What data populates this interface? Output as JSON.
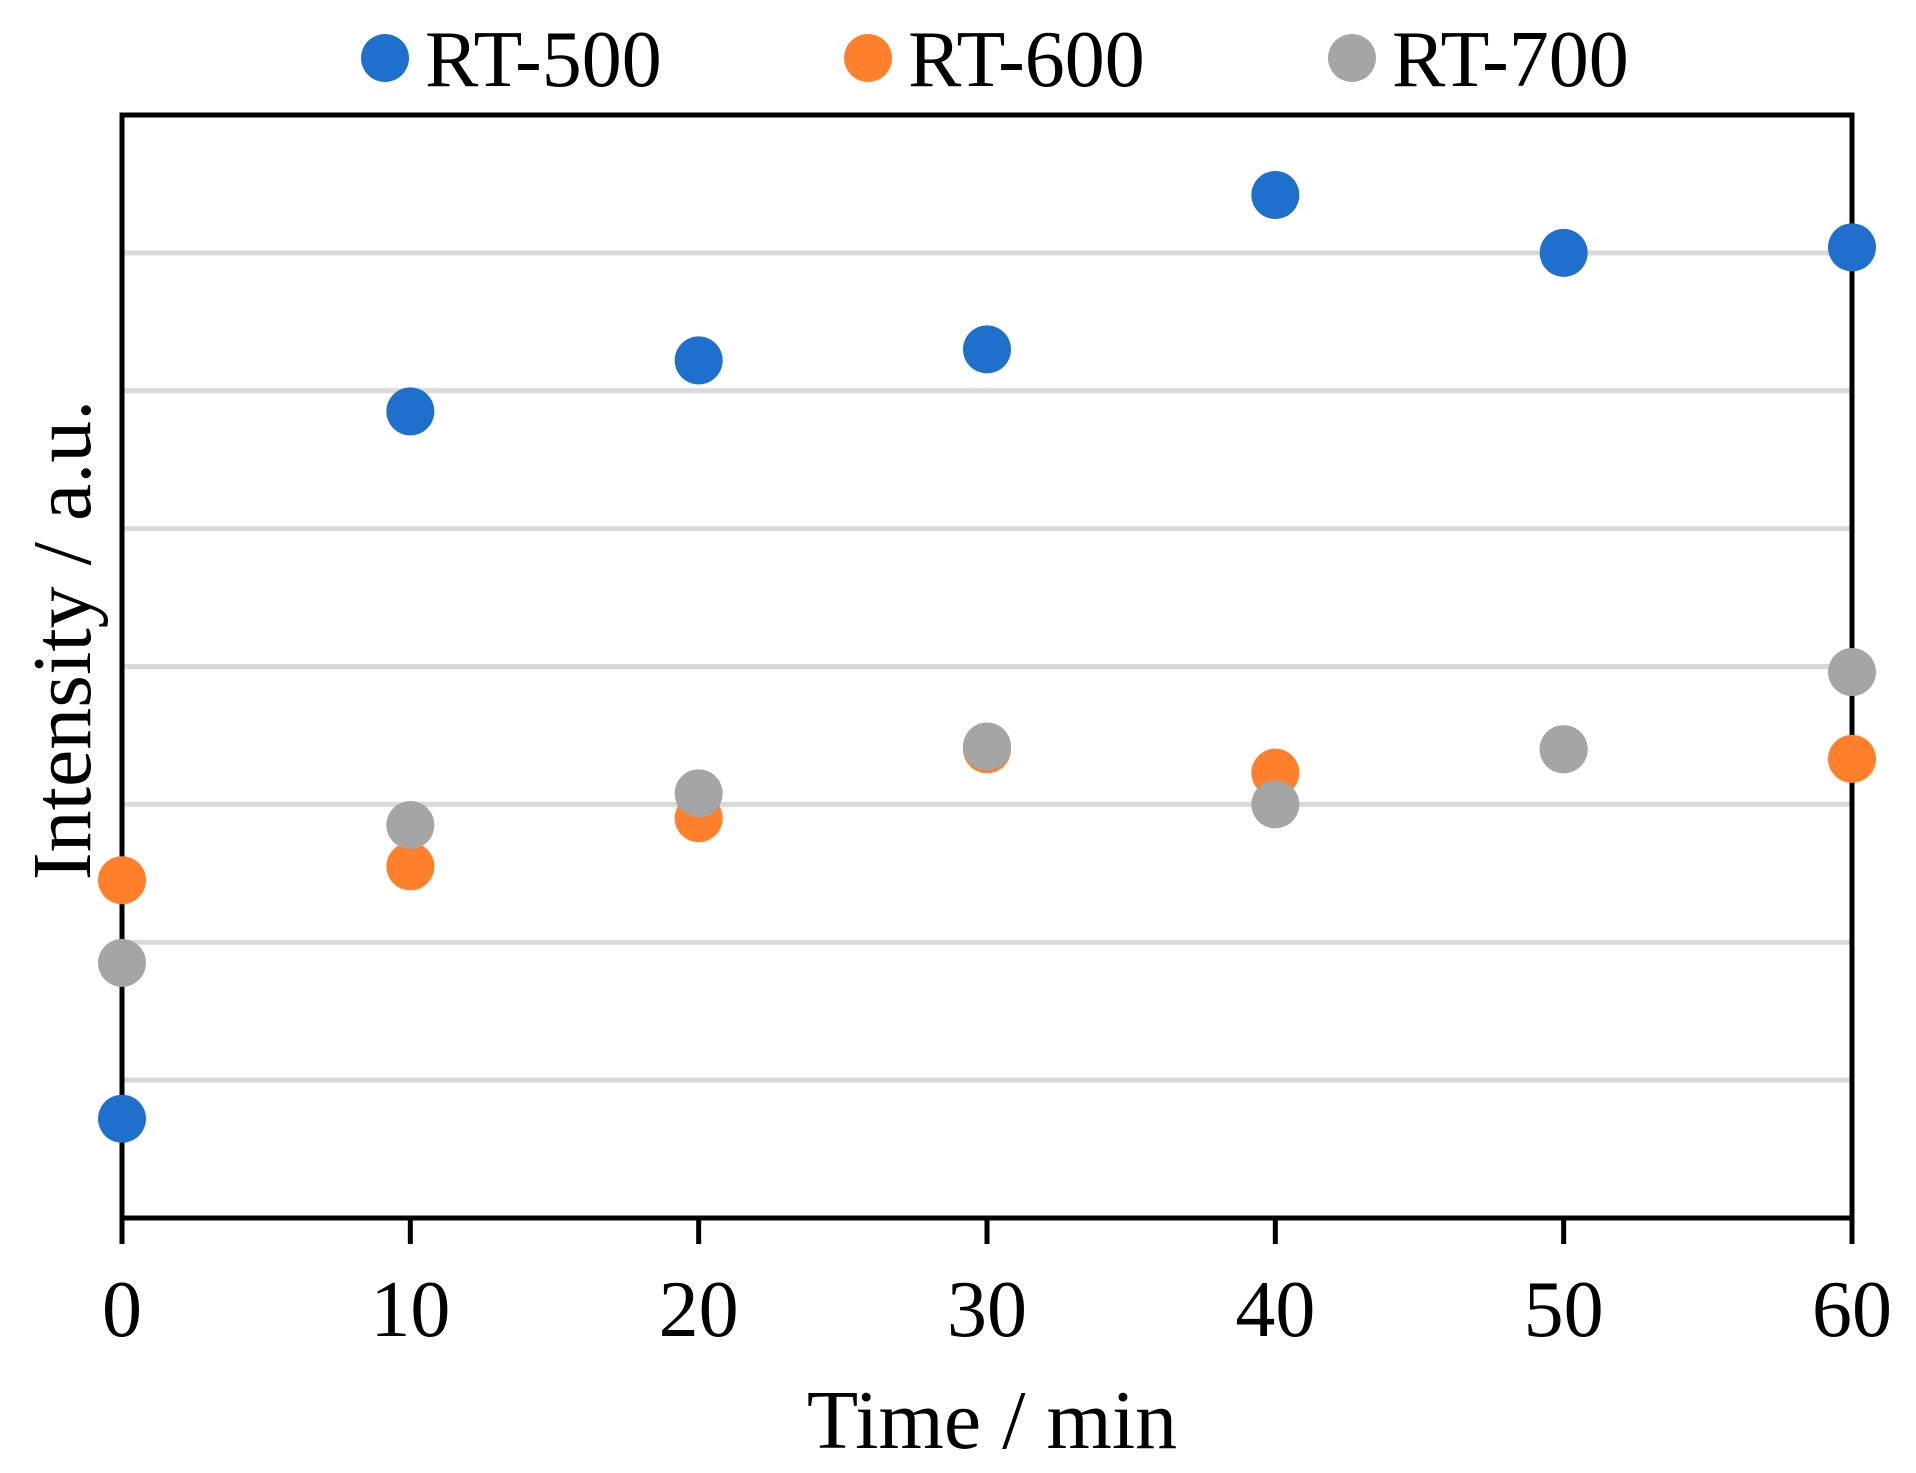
{
  "chart_data": {
    "type": "scatter",
    "xlabel": "Time / min",
    "ylabel": "Intensity / a.u.",
    "x": [
      0,
      10,
      20,
      30,
      40,
      50,
      60
    ],
    "xlim": [
      0,
      60
    ],
    "xticks": [
      "0",
      "10",
      "20",
      "30",
      "40",
      "50",
      "60"
    ],
    "ylim": [
      0,
      8
    ],
    "y_ticks_labeled": false,
    "grid": {
      "horizontal": true,
      "vertical": false,
      "color": "#d9d9d9"
    },
    "legend": {
      "position": "top",
      "entries": [
        "RT-500",
        "RT-600",
        "RT-700"
      ]
    },
    "series": [
      {
        "name": "RT-500",
        "color": "#1f6fcc",
        "values": [
          0.72,
          5.85,
          6.22,
          6.3,
          7.42,
          7.0,
          7.04
        ]
      },
      {
        "name": "RT-600",
        "color": "#ff7f2a",
        "values": [
          2.45,
          2.55,
          2.9,
          3.4,
          3.23,
          3.4,
          3.33
        ]
      },
      {
        "name": "RT-700",
        "color": "#a5a5a5",
        "values": [
          1.85,
          2.85,
          3.08,
          3.42,
          3.0,
          3.4,
          3.96
        ]
      }
    ]
  }
}
